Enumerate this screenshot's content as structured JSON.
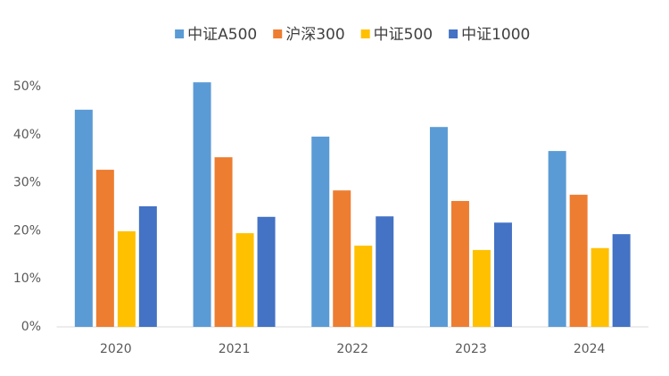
{
  "chart_data": {
    "type": "bar",
    "categories": [
      "2020",
      "2021",
      "2022",
      "2023",
      "2024"
    ],
    "series": [
      {
        "name": "中证A500",
        "color": "#5b9bd5",
        "values": [
          45.2,
          50.9,
          39.6,
          41.6,
          36.6
        ]
      },
      {
        "name": "沪深300",
        "color": "#ed7d31",
        "values": [
          32.7,
          35.3,
          28.4,
          26.2,
          27.5
        ]
      },
      {
        "name": "中证500",
        "color": "#ffc000",
        "values": [
          19.9,
          19.5,
          16.9,
          16.0,
          16.4
        ]
      },
      {
        "name": "中证1000",
        "color": "#4472c4",
        "values": [
          25.1,
          22.9,
          23.0,
          21.7,
          19.3
        ]
      }
    ],
    "ylim": [
      0,
      50
    ],
    "yticks": [
      {
        "value": 0,
        "label": "0%"
      },
      {
        "value": 10,
        "label": "10%"
      },
      {
        "value": 20,
        "label": "20%"
      },
      {
        "value": 30,
        "label": "30%"
      },
      {
        "value": 40,
        "label": "40%"
      },
      {
        "value": 50,
        "label": "50%"
      }
    ],
    "grid": false,
    "legend": "top"
  }
}
